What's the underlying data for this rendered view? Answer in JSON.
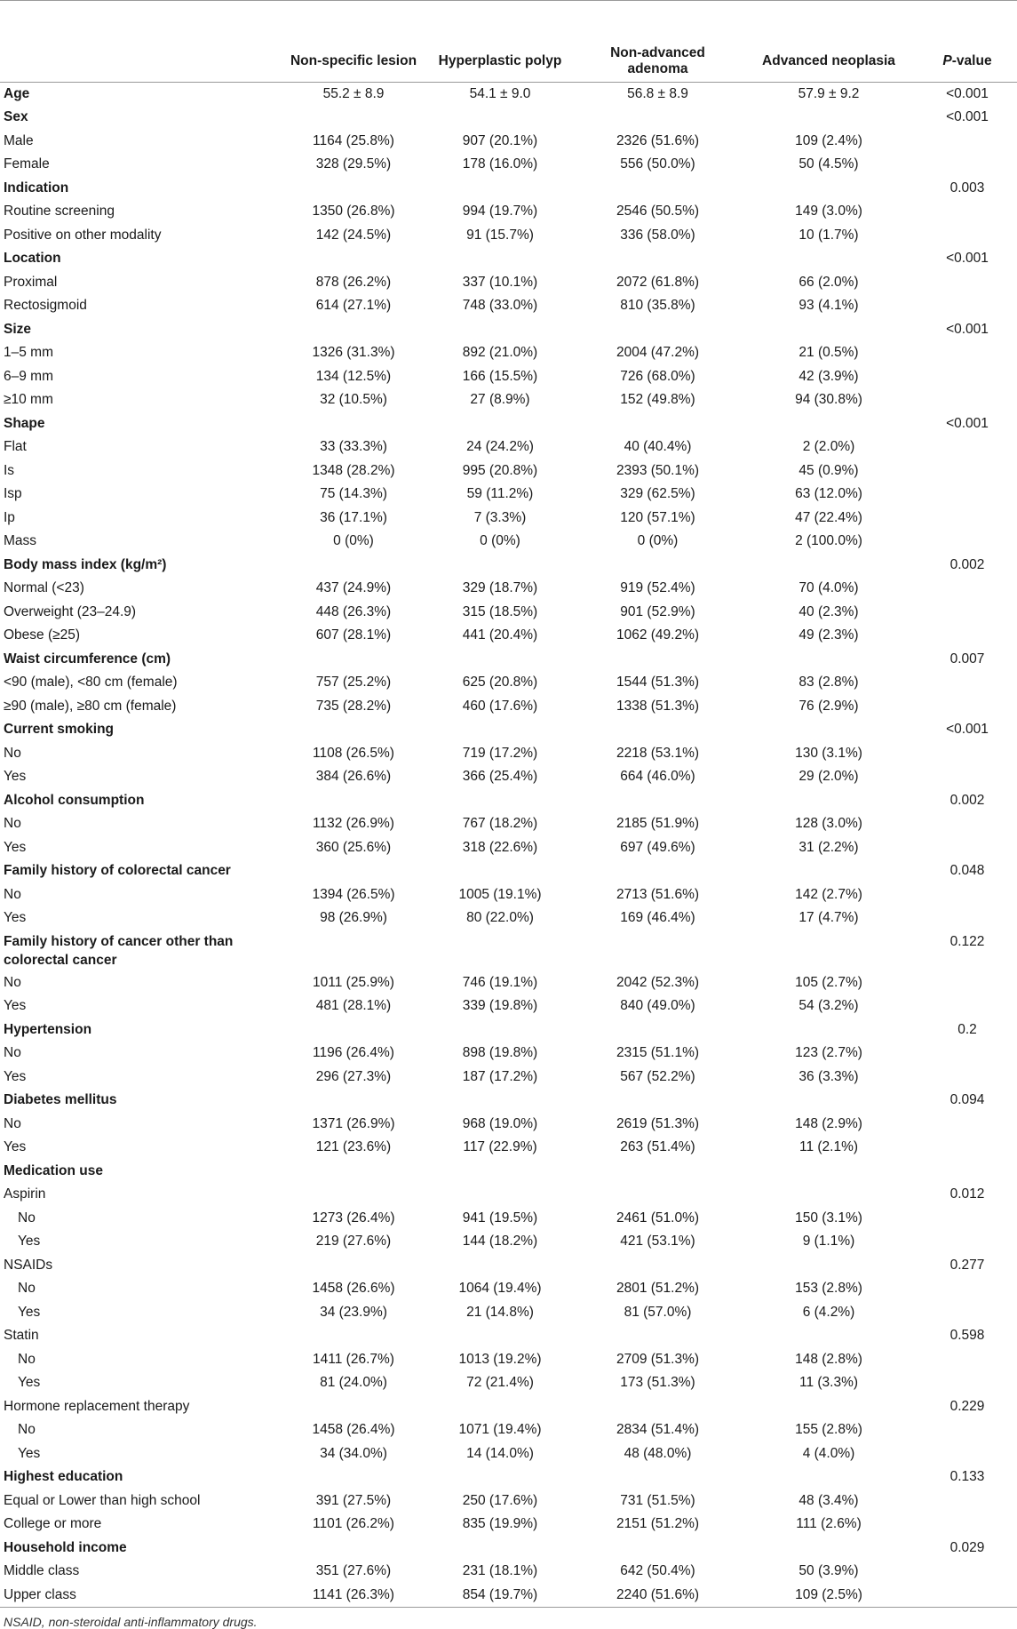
{
  "table": {
    "header": {
      "col0": "",
      "col1": "Non-specific lesion",
      "col2": "Hyperplastic polyp",
      "col3": "Non-advanced adenoma",
      "col4": "Advanced neoplasia",
      "col5_italic": "P",
      "col5_rest": "-value"
    },
    "rows": [
      {
        "type": "head",
        "label": "Age",
        "v": [
          "55.2 ± 8.9",
          "54.1 ± 9.0",
          "56.8 ± 8.9",
          "57.9 ± 9.2"
        ],
        "p": "<0.001"
      },
      {
        "type": "head",
        "label": "Sex",
        "v": [
          "",
          "",
          "",
          ""
        ],
        "p": "<0.001"
      },
      {
        "type": "sub",
        "label": "Male",
        "v": [
          "1164 (25.8%)",
          "907 (20.1%)",
          "2326 (51.6%)",
          "109 (2.4%)"
        ],
        "p": ""
      },
      {
        "type": "sub",
        "label": "Female",
        "v": [
          "328 (29.5%)",
          "178 (16.0%)",
          "556 (50.0%)",
          "50 (4.5%)"
        ],
        "p": ""
      },
      {
        "type": "head",
        "label": "Indication",
        "v": [
          "",
          "",
          "",
          ""
        ],
        "p": "0.003"
      },
      {
        "type": "sub",
        "label": "Routine screening",
        "v": [
          "1350 (26.8%)",
          "994 (19.7%)",
          "2546 (50.5%)",
          "149 (3.0%)"
        ],
        "p": ""
      },
      {
        "type": "sub",
        "label": "Positive on other modality",
        "v": [
          "142 (24.5%)",
          "91 (15.7%)",
          "336 (58.0%)",
          "10 (1.7%)"
        ],
        "p": ""
      },
      {
        "type": "head",
        "label": "Location",
        "v": [
          "",
          "",
          "",
          ""
        ],
        "p": "<0.001"
      },
      {
        "type": "sub",
        "label": "Proximal",
        "v": [
          "878 (26.2%)",
          "337 (10.1%)",
          "2072 (61.8%)",
          "66 (2.0%)"
        ],
        "p": ""
      },
      {
        "type": "sub",
        "label": "Rectosigmoid",
        "v": [
          "614 (27.1%)",
          "748 (33.0%)",
          "810 (35.8%)",
          "93 (4.1%)"
        ],
        "p": ""
      },
      {
        "type": "head",
        "label": "Size",
        "v": [
          "",
          "",
          "",
          ""
        ],
        "p": "<0.001"
      },
      {
        "type": "sub",
        "label": "1–5 mm",
        "v": [
          "1326 (31.3%)",
          "892 (21.0%)",
          "2004 (47.2%)",
          "21 (0.5%)"
        ],
        "p": ""
      },
      {
        "type": "sub",
        "label": "6–9 mm",
        "v": [
          "134 (12.5%)",
          "166 (15.5%)",
          "726 (68.0%)",
          "42 (3.9%)"
        ],
        "p": ""
      },
      {
        "type": "sub",
        "label": "≥10 mm",
        "v": [
          "32 (10.5%)",
          "27 (8.9%)",
          "152 (49.8%)",
          "94 (30.8%)"
        ],
        "p": ""
      },
      {
        "type": "head",
        "label": "Shape",
        "v": [
          "",
          "",
          "",
          ""
        ],
        "p": "<0.001"
      },
      {
        "type": "sub",
        "label": "Flat",
        "v": [
          "33 (33.3%)",
          "24 (24.2%)",
          "40 (40.4%)",
          "2 (2.0%)"
        ],
        "p": ""
      },
      {
        "type": "sub",
        "label": "Is",
        "v": [
          "1348 (28.2%)",
          "995 (20.8%)",
          "2393 (50.1%)",
          "45 (0.9%)"
        ],
        "p": ""
      },
      {
        "type": "sub",
        "label": "Isp",
        "v": [
          "75 (14.3%)",
          "59 (11.2%)",
          "329 (62.5%)",
          "63 (12.0%)"
        ],
        "p": ""
      },
      {
        "type": "sub",
        "label": "Ip",
        "v": [
          "36 (17.1%)",
          "7 (3.3%)",
          "120 (57.1%)",
          "47 (22.4%)"
        ],
        "p": ""
      },
      {
        "type": "sub",
        "label": "Mass",
        "v": [
          "0 (0%)",
          "0 (0%)",
          "0 (0%)",
          "2 (100.0%)"
        ],
        "p": ""
      },
      {
        "type": "head",
        "label": "Body mass index (kg/m²)",
        "v": [
          "",
          "",
          "",
          ""
        ],
        "p": "0.002"
      },
      {
        "type": "sub",
        "label": "Normal (<23)",
        "v": [
          "437 (24.9%)",
          "329 (18.7%)",
          "919 (52.4%)",
          "70 (4.0%)"
        ],
        "p": ""
      },
      {
        "type": "sub",
        "label": "Overweight (23–24.9)",
        "v": [
          "448 (26.3%)",
          "315 (18.5%)",
          "901 (52.9%)",
          "40 (2.3%)"
        ],
        "p": ""
      },
      {
        "type": "sub",
        "label": "Obese (≥25)",
        "v": [
          "607 (28.1%)",
          "441 (20.4%)",
          "1062 (49.2%)",
          "49 (2.3%)"
        ],
        "p": ""
      },
      {
        "type": "head",
        "label": "Waist circumference (cm)",
        "v": [
          "",
          "",
          "",
          ""
        ],
        "p": "0.007"
      },
      {
        "type": "sub",
        "label": "<90 (male), <80 cm (female)",
        "v": [
          "757 (25.2%)",
          "625 (20.8%)",
          "1544 (51.3%)",
          "83 (2.8%)"
        ],
        "p": ""
      },
      {
        "type": "sub",
        "label": "≥90 (male), ≥80 cm (female)",
        "v": [
          "735 (28.2%)",
          "460 (17.6%)",
          "1338 (51.3%)",
          "76 (2.9%)"
        ],
        "p": ""
      },
      {
        "type": "head",
        "label": "Current smoking",
        "v": [
          "",
          "",
          "",
          ""
        ],
        "p": "<0.001"
      },
      {
        "type": "sub",
        "label": "No",
        "v": [
          "1108 (26.5%)",
          "719 (17.2%)",
          "2218 (53.1%)",
          "130 (3.1%)"
        ],
        "p": ""
      },
      {
        "type": "sub",
        "label": "Yes",
        "v": [
          "384 (26.6%)",
          "366 (25.4%)",
          "664 (46.0%)",
          "29 (2.0%)"
        ],
        "p": ""
      },
      {
        "type": "head",
        "label": "Alcohol consumption",
        "v": [
          "",
          "",
          "",
          ""
        ],
        "p": "0.002"
      },
      {
        "type": "sub",
        "label": "No",
        "v": [
          "1132 (26.9%)",
          "767 (18.2%)",
          "2185 (51.9%)",
          "128 (3.0%)"
        ],
        "p": ""
      },
      {
        "type": "sub",
        "label": "Yes",
        "v": [
          "360 (25.6%)",
          "318 (22.6%)",
          "697 (49.6%)",
          "31 (2.2%)"
        ],
        "p": ""
      },
      {
        "type": "head",
        "label": "Family history of colorectal cancer",
        "v": [
          "",
          "",
          "",
          ""
        ],
        "p": "0.048"
      },
      {
        "type": "sub",
        "label": "No",
        "v": [
          "1394 (26.5%)",
          "1005 (19.1%)",
          "2713 (51.6%)",
          "142 (2.7%)"
        ],
        "p": ""
      },
      {
        "type": "sub",
        "label": "Yes",
        "v": [
          "98 (26.9%)",
          "80 (22.0%)",
          "169 (46.4%)",
          "17 (4.7%)"
        ],
        "p": ""
      },
      {
        "type": "head-wrap",
        "label": "Family history of cancer other than colorectal cancer",
        "v": [
          "",
          "",
          "",
          ""
        ],
        "p": "0.122"
      },
      {
        "type": "sub",
        "label": "No",
        "v": [
          "1011 (25.9%)",
          "746 (19.1%)",
          "2042 (52.3%)",
          "105 (2.7%)"
        ],
        "p": ""
      },
      {
        "type": "sub",
        "label": "Yes",
        "v": [
          "481 (28.1%)",
          "339 (19.8%)",
          "840 (49.0%)",
          "54 (3.2%)"
        ],
        "p": ""
      },
      {
        "type": "head",
        "label": "Hypertension",
        "v": [
          "",
          "",
          "",
          ""
        ],
        "p": "0.2"
      },
      {
        "type": "sub",
        "label": "No",
        "v": [
          "1196 (26.4%)",
          "898 (19.8%)",
          "2315 (51.1%)",
          "123 (2.7%)"
        ],
        "p": ""
      },
      {
        "type": "sub",
        "label": "Yes",
        "v": [
          "296 (27.3%)",
          "187 (17.2%)",
          "567 (52.2%)",
          "36 (3.3%)"
        ],
        "p": ""
      },
      {
        "type": "head",
        "label": "Diabetes mellitus",
        "v": [
          "",
          "",
          "",
          ""
        ],
        "p": "0.094"
      },
      {
        "type": "sub",
        "label": "No",
        "v": [
          "1371 (26.9%)",
          "968 (19.0%)",
          "2619 (51.3%)",
          "148 (2.9%)"
        ],
        "p": ""
      },
      {
        "type": "sub",
        "label": "Yes",
        "v": [
          "121 (23.6%)",
          "117 (22.9%)",
          "263 (51.4%)",
          "11 (2.1%)"
        ],
        "p": ""
      },
      {
        "type": "head",
        "label": "Medication use",
        "v": [
          "",
          "",
          "",
          ""
        ],
        "p": ""
      },
      {
        "type": "sub",
        "label": "Aspirin",
        "v": [
          "",
          "",
          "",
          ""
        ],
        "p": "0.012"
      },
      {
        "type": "sub2",
        "label": "No",
        "v": [
          "1273 (26.4%)",
          "941 (19.5%)",
          "2461 (51.0%)",
          "150 (3.1%)"
        ],
        "p": ""
      },
      {
        "type": "sub2",
        "label": "Yes",
        "v": [
          "219 (27.6%)",
          "144 (18.2%)",
          "421 (53.1%)",
          "9 (1.1%)"
        ],
        "p": ""
      },
      {
        "type": "sub",
        "label": "NSAIDs",
        "v": [
          "",
          "",
          "",
          ""
        ],
        "p": "0.277"
      },
      {
        "type": "sub2",
        "label": "No",
        "v": [
          "1458 (26.6%)",
          "1064 (19.4%)",
          "2801 (51.2%)",
          "153 (2.8%)"
        ],
        "p": ""
      },
      {
        "type": "sub2",
        "label": "Yes",
        "v": [
          "34 (23.9%)",
          "21 (14.8%)",
          "81 (57.0%)",
          "6 (4.2%)"
        ],
        "p": ""
      },
      {
        "type": "sub",
        "label": "Statin",
        "v": [
          "",
          "",
          "",
          ""
        ],
        "p": "0.598"
      },
      {
        "type": "sub2",
        "label": "No",
        "v": [
          "1411 (26.7%)",
          "1013 (19.2%)",
          "2709 (51.3%)",
          "148 (2.8%)"
        ],
        "p": ""
      },
      {
        "type": "sub2",
        "label": "Yes",
        "v": [
          "81 (24.0%)",
          "72 (21.4%)",
          "173 (51.3%)",
          "11 (3.3%)"
        ],
        "p": ""
      },
      {
        "type": "sub",
        "label": "Hormone replacement therapy",
        "v": [
          "",
          "",
          "",
          ""
        ],
        "p": "0.229"
      },
      {
        "type": "sub2",
        "label": "No",
        "v": [
          "1458 (26.4%)",
          "1071 (19.4%)",
          "2834 (51.4%)",
          "155 (2.8%)"
        ],
        "p": ""
      },
      {
        "type": "sub2",
        "label": "Yes",
        "v": [
          "34 (34.0%)",
          "14 (14.0%)",
          "48 (48.0%)",
          "4 (4.0%)"
        ],
        "p": ""
      },
      {
        "type": "head",
        "label": "Highest education",
        "v": [
          "",
          "",
          "",
          ""
        ],
        "p": "0.133"
      },
      {
        "type": "sub",
        "label": "Equal or Lower than high school",
        "v": [
          "391 (27.5%)",
          "250 (17.6%)",
          "731 (51.5%)",
          "48 (3.4%)"
        ],
        "p": ""
      },
      {
        "type": "sub",
        "label": "College or more",
        "v": [
          "1101 (26.2%)",
          "835 (19.9%)",
          "2151 (51.2%)",
          "111 (2.6%)"
        ],
        "p": ""
      },
      {
        "type": "head",
        "label": "Household income",
        "v": [
          "",
          "",
          "",
          ""
        ],
        "p": "0.029"
      },
      {
        "type": "sub",
        "label": "Middle class",
        "v": [
          "351 (27.6%)",
          "231 (18.1%)",
          "642 (50.4%)",
          "50 (3.9%)"
        ],
        "p": ""
      },
      {
        "type": "sub",
        "label": "Upper class",
        "v": [
          "1141 (26.3%)",
          "854 (19.7%)",
          "2240 (51.6%)",
          "109 (2.5%)"
        ],
        "p": ""
      }
    ]
  },
  "footnote": "NSAID, non-steroidal anti-inflammatory drugs."
}
